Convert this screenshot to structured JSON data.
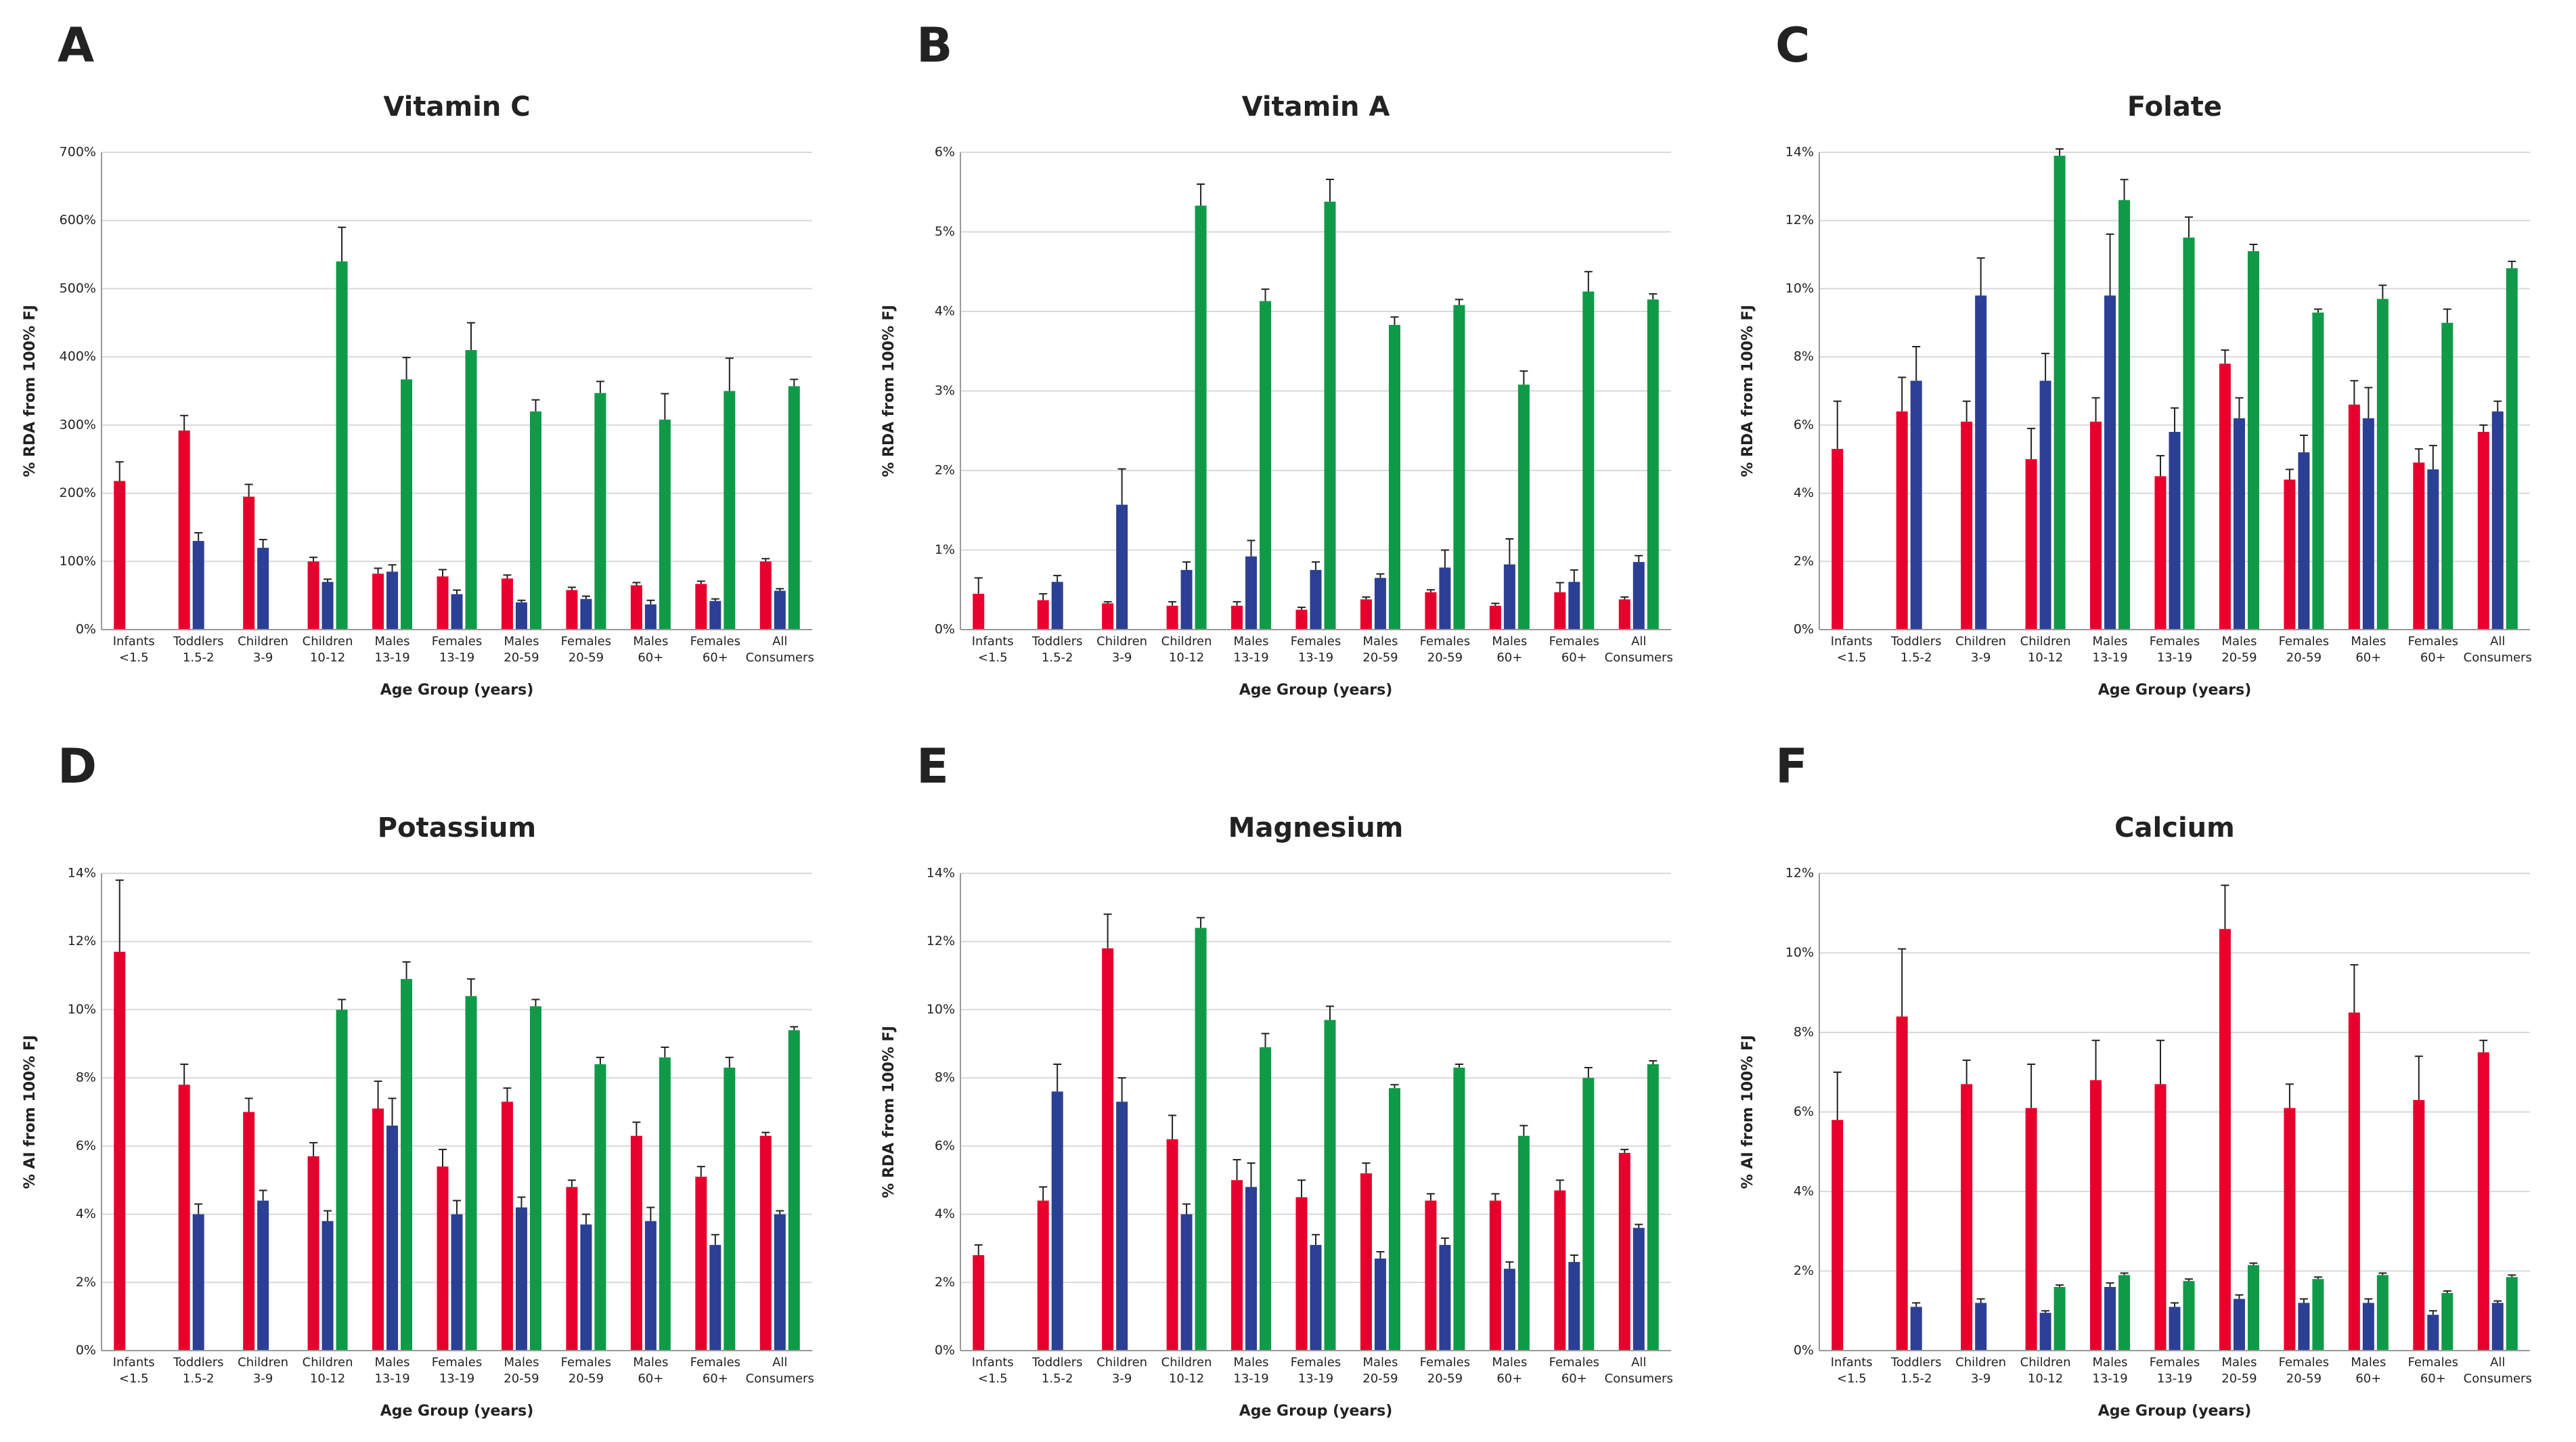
{
  "chart_data": [
    {
      "type": "bar",
      "panel_label": "A",
      "title": "Vitamin C",
      "y_label": "% RDA from 100% FJ",
      "x_label": "Age Group (years)",
      "categories": [
        "Infants <1.5",
        "Toddlers 1.5-2",
        "Children 3-9",
        "Children 10-12",
        "Males 13-19",
        "Females 13-19",
        "Males 20-59",
        "Females 20-59",
        "Males 60+",
        "Females 60+",
        "All Consumers"
      ],
      "series": [
        {
          "color": "#e8002d",
          "values": [
            218,
            292,
            195,
            100,
            82,
            78,
            75,
            58,
            65,
            67,
            100
          ],
          "errors": [
            28,
            22,
            18,
            6,
            8,
            10,
            5,
            4,
            4,
            4,
            4
          ]
        },
        {
          "color": "#2b3f94",
          "values": [
            null,
            130,
            120,
            70,
            85,
            52,
            40,
            45,
            37,
            42,
            57
          ],
          "errors": [
            null,
            12,
            12,
            4,
            10,
            6,
            3,
            4,
            6,
            3,
            3
          ]
        },
        {
          "color": "#0f9a48",
          "values": [
            null,
            null,
            null,
            540,
            367,
            410,
            320,
            347,
            308,
            350,
            357
          ],
          "errors": [
            null,
            null,
            null,
            50,
            32,
            40,
            17,
            17,
            38,
            48,
            10
          ]
        }
      ],
      "ylim": [
        0,
        700
      ],
      "yticks": [
        {
          "value": 0,
          "label": "0%"
        },
        {
          "value": 100,
          "label": "100%"
        },
        {
          "value": 200,
          "label": "200%"
        },
        {
          "value": 300,
          "label": "300%"
        },
        {
          "value": 400,
          "label": "400%"
        },
        {
          "value": 500,
          "label": "500%"
        },
        {
          "value": 600,
          "label": "600%"
        },
        {
          "value": 700,
          "label": "700%"
        }
      ],
      "grid": true
    },
    {
      "type": "bar",
      "panel_label": "B",
      "title": "Vitamin A",
      "y_label": "% RDA from 100% FJ",
      "x_label": "Age Group (years)",
      "categories": [
        "Infants <1.5",
        "Toddlers 1.5-2",
        "Children 3-9",
        "Children 10-12",
        "Males 13-19",
        "Females 13-19",
        "Males 20-59",
        "Females 20-59",
        "Males 60+",
        "Females 60+",
        "All Consumers"
      ],
      "series": [
        {
          "color": "#e8002d",
          "values": [
            0.45,
            0.37,
            0.33,
            0.3,
            0.3,
            0.25,
            0.38,
            0.47,
            0.3,
            0.47,
            0.38
          ],
          "errors": [
            0.2,
            0.08,
            0.02,
            0.05,
            0.05,
            0.03,
            0.03,
            0.03,
            0.03,
            0.12,
            0.03
          ]
        },
        {
          "color": "#2b3f94",
          "values": [
            null,
            0.6,
            1.57,
            0.75,
            0.92,
            0.75,
            0.65,
            0.78,
            0.82,
            0.6,
            0.85
          ],
          "errors": [
            null,
            0.08,
            0.45,
            0.1,
            0.2,
            0.1,
            0.05,
            0.22,
            0.32,
            0.15,
            0.08
          ]
        },
        {
          "color": "#0f9a48",
          "values": [
            null,
            null,
            null,
            5.33,
            4.13,
            5.38,
            3.83,
            4.08,
            3.08,
            4.25,
            4.15
          ],
          "errors": [
            null,
            null,
            null,
            0.27,
            0.15,
            0.28,
            0.1,
            0.07,
            0.17,
            0.25,
            0.07
          ]
        }
      ],
      "ylim": [
        0,
        6
      ],
      "yticks": [
        {
          "value": 0,
          "label": "0%"
        },
        {
          "value": 1,
          "label": "1%"
        },
        {
          "value": 2,
          "label": "2%"
        },
        {
          "value": 3,
          "label": "3%"
        },
        {
          "value": 4,
          "label": "4%"
        },
        {
          "value": 5,
          "label": "5%"
        },
        {
          "value": 6,
          "label": "6%"
        }
      ],
      "grid": true
    },
    {
      "type": "bar",
      "panel_label": "C",
      "title": "Folate",
      "y_label": "% RDA from 100% FJ",
      "x_label": "Age Group (years)",
      "categories": [
        "Infants <1.5",
        "Toddlers 1.5-2",
        "Children 3-9",
        "Children 10-12",
        "Males 13-19",
        "Females 13-19",
        "Males 20-59",
        "Females 20-59",
        "Males 60+",
        "Females 60+",
        "All Consumers"
      ],
      "series": [
        {
          "color": "#e8002d",
          "values": [
            5.3,
            6.4,
            6.1,
            5.0,
            6.1,
            4.5,
            7.8,
            4.4,
            6.6,
            4.9,
            5.8
          ],
          "errors": [
            1.4,
            1.0,
            0.6,
            0.9,
            0.7,
            0.6,
            0.4,
            0.3,
            0.7,
            0.4,
            0.2
          ]
        },
        {
          "color": "#2b3f94",
          "values": [
            null,
            7.3,
            9.8,
            7.3,
            9.8,
            5.8,
            6.2,
            5.2,
            6.2,
            4.7,
            6.4
          ],
          "errors": [
            null,
            1.0,
            1.1,
            0.8,
            1.8,
            0.7,
            0.6,
            0.5,
            0.9,
            0.7,
            0.3
          ]
        },
        {
          "color": "#0f9a48",
          "values": [
            null,
            null,
            null,
            13.9,
            12.6,
            11.5,
            11.1,
            9.3,
            9.7,
            9.0,
            10.6
          ],
          "errors": [
            null,
            null,
            null,
            0.2,
            0.6,
            0.6,
            0.2,
            0.1,
            0.4,
            0.4,
            0.2
          ]
        }
      ],
      "ylim": [
        0,
        14
      ],
      "yticks": [
        {
          "value": 0,
          "label": "0%"
        },
        {
          "value": 2,
          "label": "2%"
        },
        {
          "value": 4,
          "label": "4%"
        },
        {
          "value": 6,
          "label": "6%"
        },
        {
          "value": 8,
          "label": "8%"
        },
        {
          "value": 10,
          "label": "10%"
        },
        {
          "value": 12,
          "label": "12%"
        },
        {
          "value": 14,
          "label": "14%"
        }
      ],
      "grid": true
    },
    {
      "type": "bar",
      "panel_label": "D",
      "title": "Potassium",
      "y_label": "% AI from 100% FJ",
      "x_label": "Age Group (years)",
      "categories": [
        "Infants <1.5",
        "Toddlers 1.5-2",
        "Children 3-9",
        "Children 10-12",
        "Males 13-19",
        "Females 13-19",
        "Males 20-59",
        "Females 20-59",
        "Males 60+",
        "Females 60+",
        "All Consumers"
      ],
      "series": [
        {
          "color": "#e8002d",
          "values": [
            11.7,
            7.8,
            7.0,
            5.7,
            7.1,
            5.4,
            7.3,
            4.8,
            6.3,
            5.1,
            6.3
          ],
          "errors": [
            2.1,
            0.6,
            0.4,
            0.4,
            0.8,
            0.5,
            0.4,
            0.2,
            0.4,
            0.3,
            0.1
          ]
        },
        {
          "color": "#2b3f94",
          "values": [
            null,
            4.0,
            4.4,
            3.8,
            6.6,
            4.0,
            4.2,
            3.7,
            3.8,
            3.1,
            4.0
          ],
          "errors": [
            null,
            0.3,
            0.3,
            0.3,
            0.8,
            0.4,
            0.3,
            0.3,
            0.4,
            0.3,
            0.1
          ]
        },
        {
          "color": "#0f9a48",
          "values": [
            null,
            null,
            null,
            10.0,
            10.9,
            10.4,
            10.1,
            8.4,
            8.6,
            8.3,
            9.4
          ],
          "errors": [
            null,
            null,
            null,
            0.3,
            0.5,
            0.5,
            0.2,
            0.2,
            0.3,
            0.3,
            0.1
          ]
        }
      ],
      "ylim": [
        0,
        14
      ],
      "yticks": [
        {
          "value": 0,
          "label": "0%"
        },
        {
          "value": 2,
          "label": "2%"
        },
        {
          "value": 4,
          "label": "4%"
        },
        {
          "value": 6,
          "label": "6%"
        },
        {
          "value": 8,
          "label": "8%"
        },
        {
          "value": 10,
          "label": "10%"
        },
        {
          "value": 12,
          "label": "12%"
        },
        {
          "value": 14,
          "label": "14%"
        }
      ],
      "grid": true
    },
    {
      "type": "bar",
      "panel_label": "E",
      "title": "Magnesium",
      "y_label": "% RDA from 100% FJ",
      "x_label": "Age Group (years)",
      "categories": [
        "Infants <1.5",
        "Toddlers 1.5-2",
        "Children 3-9",
        "Children 10-12",
        "Males 13-19",
        "Females 13-19",
        "Males 20-59",
        "Females 20-59",
        "Males 60+",
        "Females 60+",
        "All Consumers"
      ],
      "series": [
        {
          "color": "#e8002d",
          "values": [
            2.8,
            4.4,
            11.8,
            6.2,
            5.0,
            4.5,
            5.2,
            4.4,
            4.4,
            4.7,
            5.8
          ],
          "errors": [
            0.3,
            0.4,
            1.0,
            0.7,
            0.6,
            0.5,
            0.3,
            0.2,
            0.2,
            0.3,
            0.1
          ]
        },
        {
          "color": "#2b3f94",
          "values": [
            null,
            7.6,
            7.3,
            4.0,
            4.8,
            3.1,
            2.7,
            3.1,
            2.4,
            2.6,
            3.6
          ],
          "errors": [
            null,
            0.8,
            0.7,
            0.3,
            0.7,
            0.3,
            0.2,
            0.2,
            0.2,
            0.2,
            0.1
          ]
        },
        {
          "color": "#0f9a48",
          "values": [
            null,
            null,
            null,
            12.4,
            8.9,
            9.7,
            7.7,
            8.3,
            6.3,
            8.0,
            8.4
          ],
          "errors": [
            null,
            null,
            null,
            0.3,
            0.4,
            0.4,
            0.1,
            0.1,
            0.3,
            0.3,
            0.1
          ]
        }
      ],
      "ylim": [
        0,
        14
      ],
      "yticks": [
        {
          "value": 0,
          "label": "0%"
        },
        {
          "value": 2,
          "label": "2%"
        },
        {
          "value": 4,
          "label": "4%"
        },
        {
          "value": 6,
          "label": "6%"
        },
        {
          "value": 8,
          "label": "8%"
        },
        {
          "value": 10,
          "label": "10%"
        },
        {
          "value": 12,
          "label": "12%"
        },
        {
          "value": 14,
          "label": "14%"
        }
      ],
      "grid": true
    },
    {
      "type": "bar",
      "panel_label": "F",
      "title": "Calcium",
      "y_label": "% AI from 100% FJ",
      "x_label": "Age Group (years)",
      "categories": [
        "Infants <1.5",
        "Toddlers 1.5-2",
        "Children 3-9",
        "Children 10-12",
        "Males 13-19",
        "Females 13-19",
        "Males 20-59",
        "Females 20-59",
        "Males 60+",
        "Females 60+",
        "All Consumers"
      ],
      "series": [
        {
          "color": "#e8002d",
          "values": [
            5.8,
            8.4,
            6.7,
            6.1,
            6.8,
            6.7,
            10.6,
            6.1,
            8.5,
            6.3,
            7.5
          ],
          "errors": [
            1.2,
            1.7,
            0.6,
            1.1,
            1.0,
            1.1,
            1.1,
            0.6,
            1.2,
            1.1,
            0.3
          ]
        },
        {
          "color": "#2b3f94",
          "values": [
            null,
            1.1,
            1.2,
            0.95,
            1.6,
            1.1,
            1.3,
            1.2,
            1.2,
            0.9,
            1.2
          ],
          "errors": [
            null,
            0.1,
            0.1,
            0.05,
            0.1,
            0.1,
            0.1,
            0.1,
            0.1,
            0.1,
            0.05
          ]
        },
        {
          "color": "#0f9a48",
          "values": [
            null,
            null,
            null,
            1.6,
            1.9,
            1.75,
            2.15,
            1.8,
            1.9,
            1.45,
            1.85
          ],
          "errors": [
            null,
            null,
            null,
            0.05,
            0.05,
            0.05,
            0.05,
            0.05,
            0.05,
            0.05,
            0.05
          ]
        }
      ],
      "ylim": [
        0,
        12
      ],
      "yticks": [
        {
          "value": 0,
          "label": "0%"
        },
        {
          "value": 2,
          "label": "2%"
        },
        {
          "value": 4,
          "label": "4%"
        },
        {
          "value": 6,
          "label": "6%"
        },
        {
          "value": 8,
          "label": "8%"
        },
        {
          "value": 10,
          "label": "10%"
        },
        {
          "value": 12,
          "label": "12%"
        }
      ],
      "grid": true
    }
  ]
}
